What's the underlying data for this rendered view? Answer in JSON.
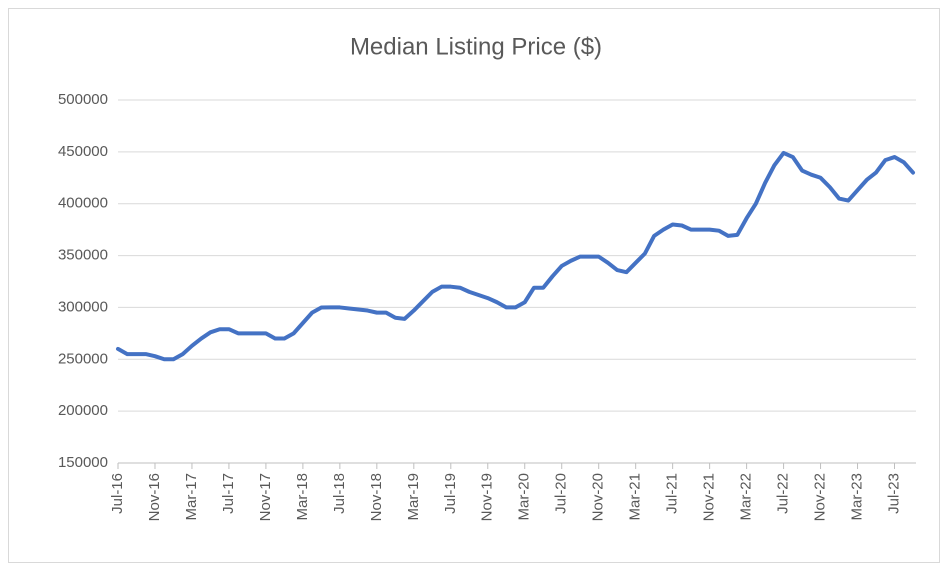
{
  "chart_data": {
    "type": "line",
    "title": "Median Listing Price ($)",
    "categories": [
      "Jul-16",
      null,
      null,
      null,
      "Nov-16",
      null,
      null,
      null,
      "Mar-17",
      null,
      null,
      null,
      "Jul-17",
      null,
      null,
      null,
      "Nov-17",
      null,
      null,
      null,
      "Mar-18",
      null,
      null,
      null,
      "Jul-18",
      null,
      null,
      null,
      "Nov-18",
      null,
      null,
      null,
      "Mar-19",
      null,
      null,
      null,
      "Jul-19",
      null,
      null,
      null,
      "Nov-19",
      null,
      null,
      null,
      "Mar-20",
      null,
      null,
      null,
      "Jul-20",
      null,
      null,
      null,
      "Nov-20",
      null,
      null,
      null,
      "Mar-21",
      null,
      null,
      null,
      "Jul-21",
      null,
      null,
      null,
      "Nov-21",
      null,
      null,
      null,
      "Mar-22",
      null,
      null,
      null,
      "Jul-22",
      null,
      null,
      null,
      "Nov-22",
      null,
      null,
      null,
      "Mar-23",
      null,
      null,
      null,
      "Jul-23",
      null,
      null
    ],
    "values": [
      260000,
      255000,
      255000,
      255000,
      253000,
      250000,
      250000,
      255000,
      263000,
      270000,
      276000,
      279000,
      279000,
      275000,
      275000,
      275000,
      275000,
      270000,
      270000,
      275000,
      285000,
      295000,
      299900,
      300000,
      300000,
      299000,
      298000,
      297000,
      295000,
      295000,
      290000,
      289000,
      297000,
      306000,
      315000,
      320000,
      320000,
      319000,
      315000,
      312000,
      309000,
      305000,
      300000,
      300000,
      305000,
      319000,
      319000,
      330000,
      340000,
      345000,
      349000,
      349000,
      349000,
      343000,
      336000,
      334000,
      343000,
      352000,
      369000,
      375000,
      380000,
      379000,
      375000,
      375000,
      375000,
      374000,
      369000,
      370000,
      386000,
      400000,
      420000,
      437000,
      449000,
      445000,
      432000,
      428000,
      425000,
      416000,
      405000,
      403000,
      413000,
      423000,
      430000,
      442000,
      445000,
      440000,
      430000
    ],
    "color": "#4472c4",
    "ylim": [
      150000,
      500000
    ],
    "yticks": [
      150000,
      200000,
      250000,
      300000,
      350000,
      400000,
      450000,
      500000
    ],
    "grid": true
  }
}
